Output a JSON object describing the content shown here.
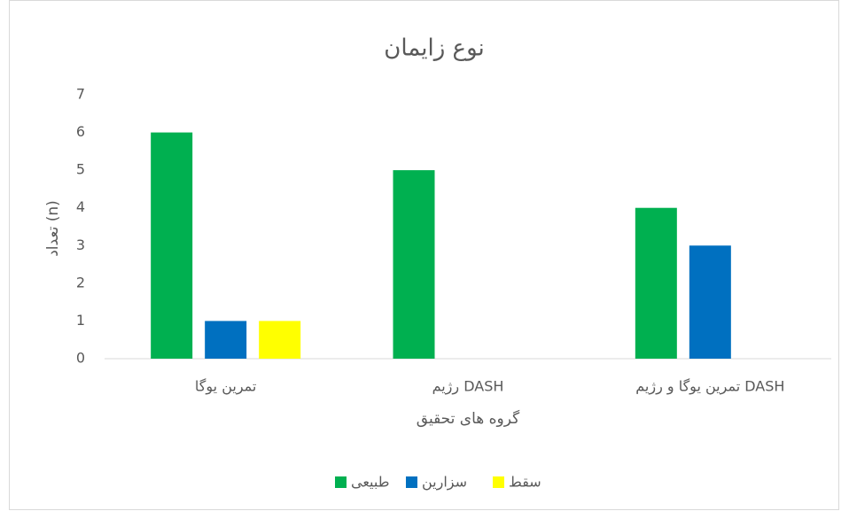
{
  "chart_data": {
    "type": "bar",
    "title": "نوع زایمان",
    "x_label": "گروه های تحقیق",
    "y_label": "تعداد (n)",
    "categories": [
      "تمرین یوگا",
      "رژیم DASH",
      "تمرین یوگا و رژیم DASH"
    ],
    "series": [
      {
        "name": "طبیعی",
        "color": "#00b050",
        "values": [
          6,
          5,
          4
        ]
      },
      {
        "name": "سزارین",
        "color": "#0070c0",
        "values": [
          1,
          0,
          3
        ]
      },
      {
        "name": "سقط",
        "color": "#ffff00",
        "values": [
          1,
          0,
          0
        ]
      }
    ],
    "ylim": [
      0,
      7
    ],
    "yticks": [
      0,
      1,
      2,
      3,
      4,
      5,
      6,
      7
    ],
    "grid": false,
    "legend": "bottom"
  }
}
